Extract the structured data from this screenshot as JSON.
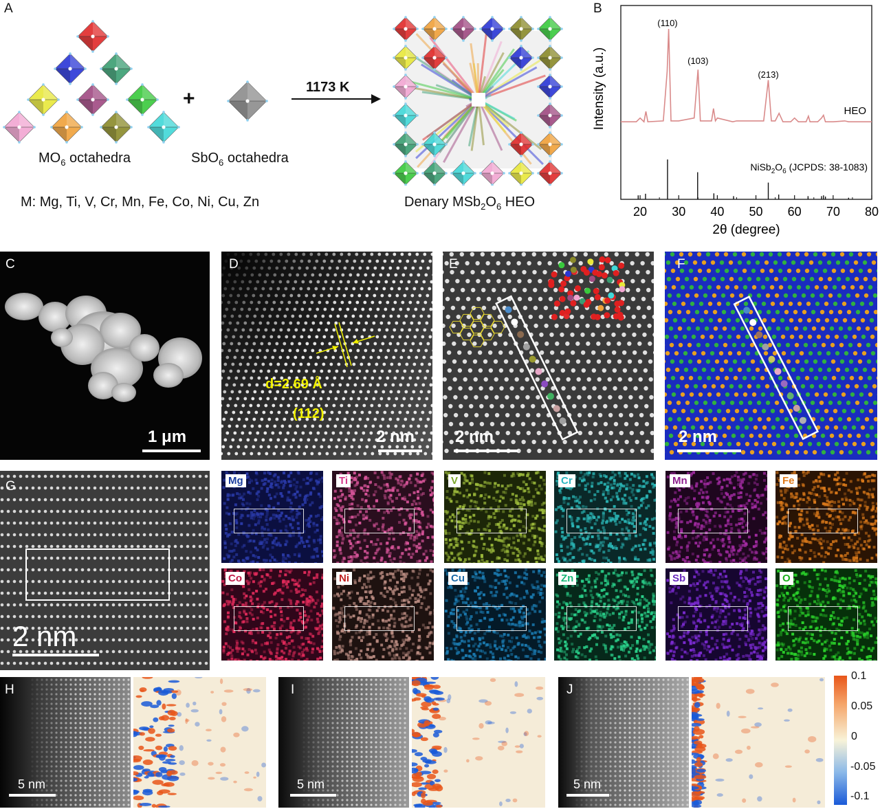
{
  "panelA": {
    "label": "A",
    "plus": "+",
    "mo6_main": "MO",
    "mo6_sub": "6",
    "mo6_rest": " octahedra",
    "sbo6_main": "SbO",
    "sbo6_sub": "6",
    "sbo6_rest": " octahedra",
    "arrow_label": "1173 K",
    "metals_line": "M: Mg, Ti, V, Cr, Mn, Fe, Co, Ni, Cu, Zn",
    "product_a": "Denary MSb",
    "product_sub1": "2",
    "product_b": "O",
    "product_sub2": "6",
    "product_c": " HEO",
    "octa_colors": [
      "#e02a2a",
      "#2a36d6",
      "#3a9e72",
      "#e8e83a",
      "#a04a82",
      "#39c93d",
      "#f2a6d2",
      "#f0a13a",
      "#8a8a2a",
      "#40d8d8"
    ],
    "sb_color": "#8c8c8c"
  },
  "chart_data": {
    "type": "line",
    "xlabel": "2θ (degree)",
    "ylabel": "Intensity (a.u.)",
    "xlim": [
      15,
      80
    ],
    "xticks": [
      "20",
      "30",
      "40",
      "50",
      "60",
      "70",
      "80"
    ],
    "series": [
      {
        "name": "HEO",
        "x": [
          15,
          19,
          20,
          21,
          21.5,
          22,
          26,
          27,
          27.4,
          28,
          30,
          34,
          35,
          35.6,
          36,
          38.5,
          39,
          39.5,
          40,
          44,
          45,
          52,
          53.2,
          54,
          55,
          56,
          57,
          59,
          60,
          61,
          63,
          63.6,
          64,
          66,
          67,
          67.5,
          68,
          70,
          73,
          74,
          75,
          80
        ],
        "y": [
          0.02,
          0.02,
          0.06,
          0.02,
          0.13,
          0.02,
          0.03,
          0.55,
          1.0,
          0.03,
          0.03,
          0.06,
          0.57,
          0.03,
          0.03,
          0.03,
          0.16,
          0.03,
          0.06,
          0.02,
          0.03,
          0.03,
          0.46,
          0.03,
          0.03,
          0.11,
          0.02,
          0.02,
          0.06,
          0.02,
          0.02,
          0.08,
          0.02,
          0.02,
          0.06,
          0.09,
          0.02,
          0.02,
          0.03,
          0.02,
          0.02,
          0.02
        ]
      }
    ],
    "reference": {
      "name": "NiSb2O6 (JCPDS: 38-1083)",
      "positions": [
        19.5,
        21.4,
        27.1,
        34.9,
        39.1,
        44.2,
        53.2,
        55.9,
        63.5,
        67.0,
        67.5,
        68.0,
        74.0
      ],
      "heights": [
        0.1,
        0.14,
        1.0,
        0.68,
        0.15,
        0.08,
        0.42,
        0.12,
        0.08,
        0.08,
        0.1,
        0.07,
        0.04
      ]
    },
    "annotations": [
      {
        "text": "(110)",
        "x": 27.1
      },
      {
        "text": "(103)",
        "x": 35.0
      },
      {
        "text": "(213)",
        "x": 53.2
      }
    ],
    "series_label": "HEO",
    "ref_label_a": "NiSb",
    "ref_label_sub1": "2",
    "ref_label_b": "O",
    "ref_label_sub2": "6",
    "ref_label_c": " (JCPDS: 38-1083)"
  },
  "panelB": {
    "label": "B",
    "curve_color": "#d98a8a"
  },
  "panelC": {
    "label": "C",
    "scale": "1 μm"
  },
  "panelD": {
    "label": "D",
    "scale": "2 nm",
    "d_text": "d=2.69 Å",
    "plane": "(112)"
  },
  "panelE": {
    "label": "E",
    "scale": "2 nm"
  },
  "panelF": {
    "label": "F",
    "scale": "2 nm"
  },
  "panelG": {
    "label": "G",
    "scale": "2 nm"
  },
  "maps": [
    {
      "el": "Mg",
      "color": "#2a3aa8",
      "bg": "#0b0f40",
      "lbl": "#1a3c9e"
    },
    {
      "el": "Ti",
      "color": "#d8559a",
      "bg": "#2a0e1e",
      "lbl": "#d63a8c"
    },
    {
      "el": "V",
      "color": "#9ab83a",
      "bg": "#1c2608",
      "lbl": "#7ca82a"
    },
    {
      "el": "Cr",
      "color": "#2ab5b5",
      "bg": "#0a2828",
      "lbl": "#2ab7c2"
    },
    {
      "el": "Mn",
      "color": "#a02aa0",
      "bg": "#1e061e",
      "lbl": "#8e1e8e"
    },
    {
      "el": "Fe",
      "color": "#d8781a",
      "bg": "#2a1404",
      "lbl": "#e07a1a"
    },
    {
      "el": "Co",
      "color": "#e02a5a",
      "bg": "#30061a",
      "lbl": "#c21a4a"
    },
    {
      "el": "Ni",
      "color": "#b88a80",
      "bg": "#1e1210",
      "lbl": "#c02020"
    },
    {
      "el": "Cu",
      "color": "#1a7ab0",
      "bg": "#041a28",
      "lbl": "#1a6aa8"
    },
    {
      "el": "Zn",
      "color": "#2ad08a",
      "bg": "#06281a",
      "lbl": "#1ab87a"
    },
    {
      "el": "Sb",
      "color": "#7a2ad0",
      "bg": "#160630",
      "lbl": "#6a2ac0"
    },
    {
      "el": "O",
      "color": "#2ad02a",
      "bg": "#06300a",
      "lbl": "#1ab01a"
    }
  ],
  "panelH": {
    "label": "H",
    "scale": "5 nm"
  },
  "panelI": {
    "label": "I",
    "scale": "5 nm"
  },
  "panelJ": {
    "label": "J",
    "scale": "5 nm"
  },
  "colorbar": {
    "ticks": [
      "0.1",
      "0.05",
      "0",
      "-0.05",
      "-0.1"
    ]
  }
}
